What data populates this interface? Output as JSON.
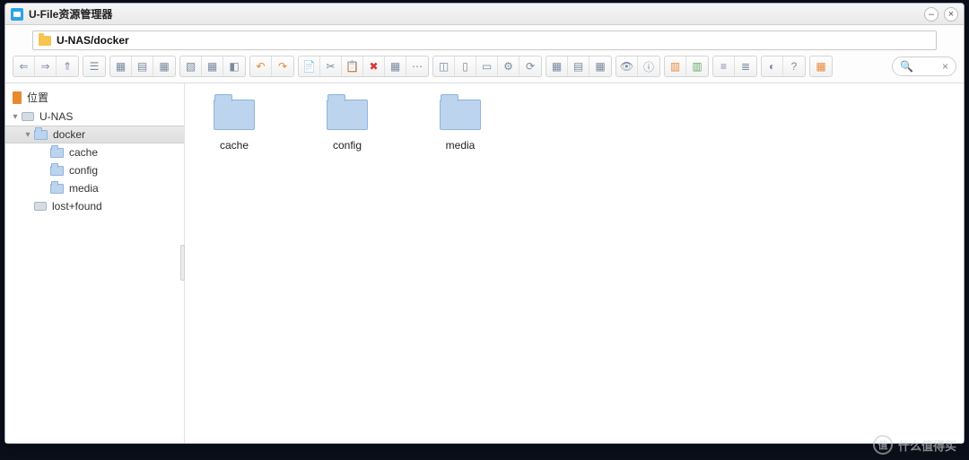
{
  "window": {
    "title": "U-File资源管理器",
    "minimize": "–",
    "close": "×"
  },
  "address": {
    "path": "U-NAS/docker"
  },
  "toolbar": {
    "groups": [
      {
        "buttons": [
          {
            "glyph": "⇐"
          },
          {
            "glyph": "⇒"
          },
          {
            "glyph": "⇑"
          }
        ]
      },
      {
        "buttons": [
          {
            "glyph": "☰"
          }
        ]
      },
      {
        "buttons": [
          {
            "glyph": "▦"
          },
          {
            "glyph": "▤"
          },
          {
            "glyph": "▦"
          }
        ]
      },
      {
        "buttons": [
          {
            "glyph": "▧"
          },
          {
            "glyph": "▦"
          },
          {
            "glyph": "◧"
          }
        ]
      },
      {
        "buttons": [
          {
            "glyph": "↶",
            "cls": "orange"
          },
          {
            "glyph": "↷",
            "cls": "orange"
          }
        ]
      },
      {
        "buttons": [
          {
            "glyph": "📄"
          },
          {
            "glyph": "✂"
          },
          {
            "glyph": "📋"
          },
          {
            "glyph": "✖",
            "cls": "red"
          },
          {
            "glyph": "▦"
          },
          {
            "glyph": "⋯"
          }
        ]
      },
      {
        "buttons": [
          {
            "glyph": "◫"
          },
          {
            "glyph": "▯"
          },
          {
            "glyph": "▭"
          },
          {
            "glyph": "⚙"
          },
          {
            "glyph": "⟳"
          }
        ]
      },
      {
        "buttons": [
          {
            "glyph": "▦"
          },
          {
            "glyph": "▤"
          },
          {
            "glyph": "▦"
          }
        ]
      },
      {
        "buttons": [
          {
            "glyph": "👁"
          },
          {
            "glyph": "ⓘ"
          }
        ]
      },
      {
        "buttons": [
          {
            "glyph": "▥",
            "cls": "orange"
          },
          {
            "glyph": "▥",
            "cls": "green"
          }
        ]
      },
      {
        "buttons": [
          {
            "glyph": "≡"
          },
          {
            "glyph": "≣"
          }
        ]
      },
      {
        "buttons": [
          {
            "glyph": "◐"
          },
          {
            "glyph": "?"
          }
        ]
      },
      {
        "buttons": [
          {
            "glyph": "▦",
            "cls": "orange"
          }
        ]
      }
    ],
    "search": {
      "icon": "🔍",
      "close": "×"
    }
  },
  "sidebar": {
    "places_label": "位置",
    "tree": {
      "root": {
        "label": "U-NAS",
        "expanded": true
      },
      "docker": {
        "label": "docker",
        "selected": true
      },
      "children": [
        {
          "label": "cache"
        },
        {
          "label": "config"
        },
        {
          "label": "media"
        }
      ],
      "lostfound": {
        "label": "lost+found"
      }
    }
  },
  "content": {
    "folders": [
      {
        "label": "cache"
      },
      {
        "label": "config"
      },
      {
        "label": "media"
      }
    ]
  },
  "watermark": {
    "badge": "值",
    "text": "什么值得买"
  },
  "style": {
    "folder_fill": "#bcd4ee",
    "folder_border": "#8fb5dd",
    "accent": "#2aa3e8"
  }
}
